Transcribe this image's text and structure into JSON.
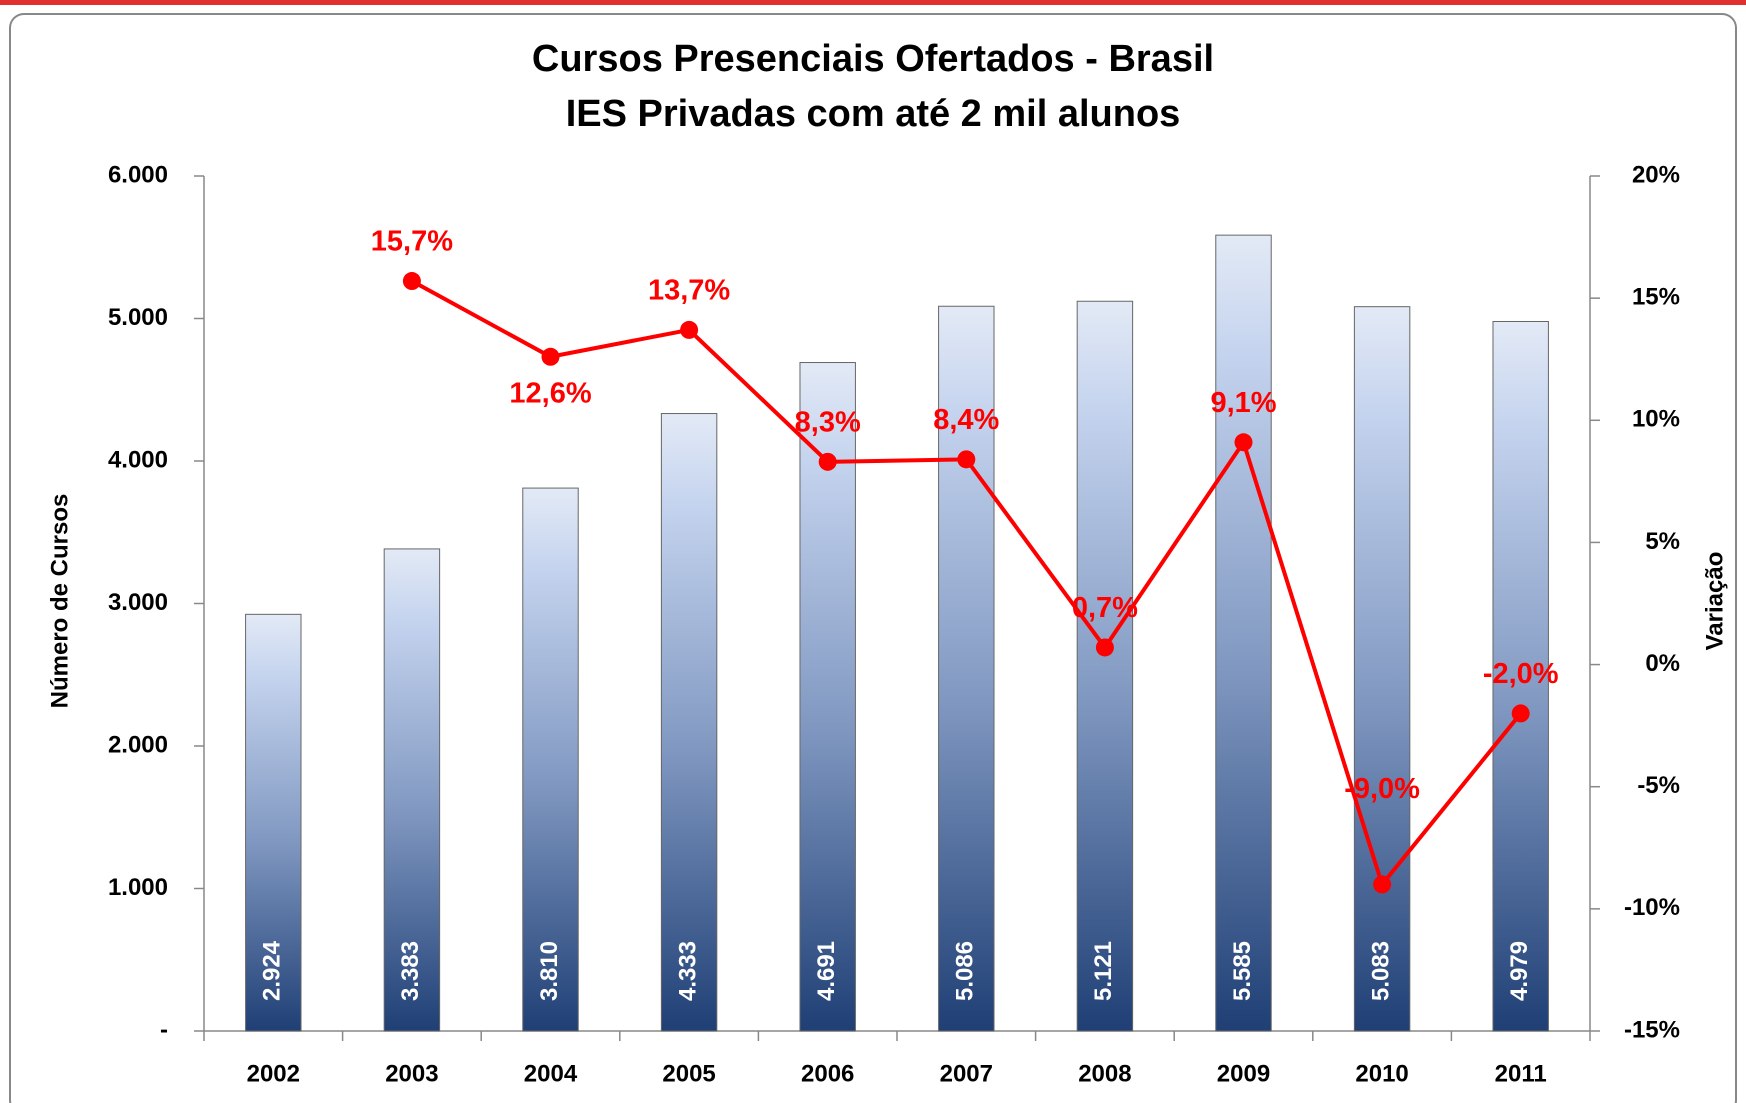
{
  "chart_data": {
    "type": "bar",
    "title": "Cursos Presenciais Ofertados - Brasil",
    "subtitle": "IES Privadas com até 2 mil alunos",
    "y_label": "Número de Cursos",
    "y2_label": "Variação",
    "categories": [
      "2002",
      "2003",
      "2004",
      "2005",
      "2006",
      "2007",
      "2008",
      "2009",
      "2010",
      "2011"
    ],
    "series": [
      {
        "name": "Número de Cursos",
        "type": "bar",
        "color": "#1f3f75",
        "values": [
          2924,
          3383,
          3810,
          4333,
          4691,
          5086,
          5121,
          5585,
          5083,
          4979
        ],
        "value_labels": [
          "2.924",
          "3.383",
          "3.810",
          "4.333",
          "4.691",
          "5.086",
          "5.121",
          "5.585",
          "5.083",
          "4.979"
        ]
      },
      {
        "name": "Variação",
        "type": "line",
        "axis": "y2",
        "color": "#ff0000",
        "values": [
          null,
          15.7,
          12.6,
          13.7,
          8.3,
          8.4,
          0.7,
          9.1,
          -9.0,
          -2.0
        ],
        "value_labels": [
          null,
          "15,7%",
          "12,6%",
          "13,7%",
          "8,3%",
          "8,4%",
          "0,7%",
          "9,1%",
          "-9,0%",
          "-2,0%"
        ]
      }
    ],
    "ylim": [
      0,
      6000
    ],
    "yticks": [
      {
        "value": 0,
        "label": "-"
      },
      {
        "value": 1000,
        "label": "1.000"
      },
      {
        "value": 2000,
        "label": "2.000"
      },
      {
        "value": 3000,
        "label": "3.000"
      },
      {
        "value": 4000,
        "label": "4.000"
      },
      {
        "value": 5000,
        "label": "5.000"
      },
      {
        "value": 6000,
        "label": "6.000"
      }
    ],
    "y2lim": [
      -15,
      20
    ],
    "y2ticks": [
      {
        "value": -15,
        "label": "-15%"
      },
      {
        "value": -10,
        "label": "-10%"
      },
      {
        "value": -5,
        "label": "-5%"
      },
      {
        "value": 0,
        "label": "0%"
      },
      {
        "value": 5,
        "label": "5%"
      },
      {
        "value": 10,
        "label": "10%"
      },
      {
        "value": 15,
        "label": "15%"
      },
      {
        "value": 20,
        "label": "20%"
      }
    ],
    "grid": false
  }
}
